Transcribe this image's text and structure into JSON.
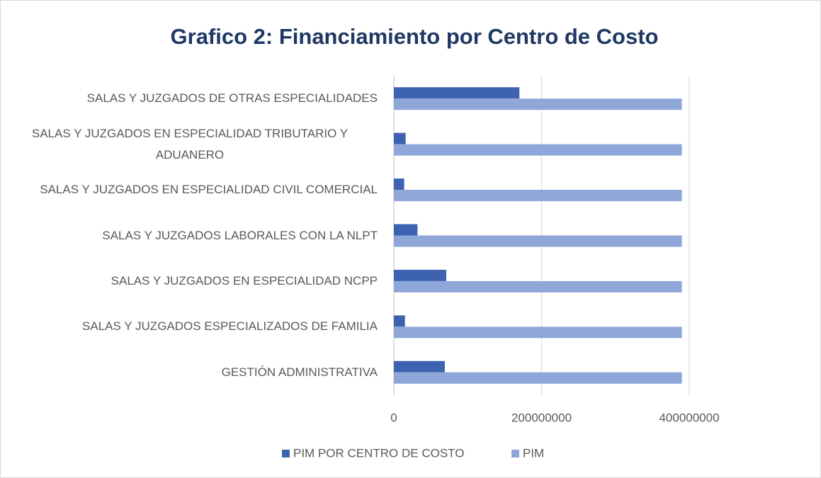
{
  "chart_data": {
    "type": "hbar",
    "title": "Grafico 2: Financiamiento por Centro de Costo",
    "categories": [
      "SALAS Y JUZGADOS DE OTRAS ESPECIALIDADES",
      "SALAS Y JUZGADOS EN ESPECIALIDAD TRIBUTARIO Y ADUANERO",
      "SALAS Y JUZGADOS EN ESPECIALIDAD CIVIL COMERCIAL",
      "SALAS Y JUZGADOS LABORALES CON LA NLPT",
      "SALAS Y JUZGADOS EN ESPECIALIDAD NCPP",
      "SALAS Y JUZGADOS ESPECIALIZADOS DE FAMILIA",
      "GESTIÓN ADMINISTRATIVA"
    ],
    "series": [
      {
        "name": "PIM POR CENTRO DE COSTO",
        "color": "#3d62b0",
        "values": [
          170000000,
          16000000,
          14000000,
          32000000,
          71000000,
          15000000,
          69000000
        ]
      },
      {
        "name": "PIM",
        "color": "#8fa6d9",
        "values": [
          390000000,
          390000000,
          390000000,
          390000000,
          390000000,
          390000000,
          390000000
        ]
      }
    ],
    "xlim": [
      0,
      400000000
    ],
    "xticks": [
      0,
      200000000,
      400000000
    ],
    "grid": true,
    "legend": "bottom"
  }
}
